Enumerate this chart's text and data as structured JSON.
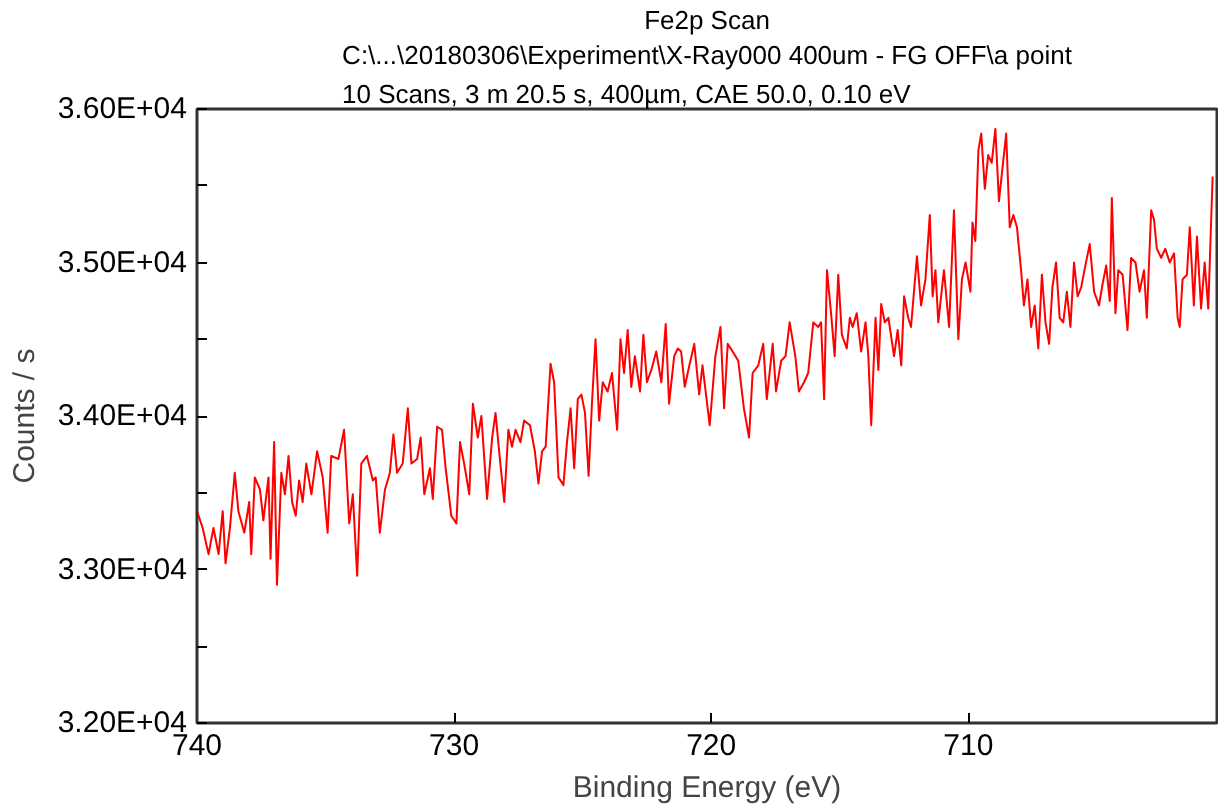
{
  "chart_data": {
    "type": "line",
    "title": "Fe2p Scan",
    "subtitle": "C:\\...\\20180306\\Experiment\\X-Ray000 400um - FG OFF\\a point\n10 Scans,  3 m 20.5 s,  400µm,  CAE 50.0,  0.10 eV",
    "xlabel": "Binding Energy (eV)",
    "ylabel": "Counts / s",
    "xlim": [
      740,
      700.33
    ],
    "xticks": [
      740,
      730,
      720,
      710
    ],
    "ylim": [
      32000,
      36000
    ],
    "yticks": [
      {
        "value": 32000,
        "label": "3.20E+04"
      },
      {
        "value": 32500,
        "label": null
      },
      {
        "value": 33000,
        "label": "3.30E+04"
      },
      {
        "value": 33500,
        "label": null
      },
      {
        "value": 34000,
        "label": "3.40E+04"
      },
      {
        "value": 34500,
        "label": null
      },
      {
        "value": 35000,
        "label": "3.50E+04"
      },
      {
        "value": 35500,
        "label": null
      },
      {
        "value": 36000,
        "label": "3.60E+04"
      }
    ],
    "grid": false,
    "marker": "none",
    "line_style": "solid",
    "series": [
      {
        "color": "#ff0000",
        "x": [
          740.0,
          739.78,
          739.55,
          739.36,
          739.16,
          739.0,
          738.89,
          738.72,
          738.53,
          738.39,
          738.16,
          737.97,
          737.89,
          737.75,
          737.55,
          737.42,
          737.22,
          737.14,
          737.0,
          736.89,
          736.72,
          736.58,
          736.44,
          736.3,
          736.16,
          736.03,
          735.89,
          735.75,
          735.55,
          735.33,
          735.11,
          734.92,
          734.78,
          734.5,
          734.28,
          734.08,
          733.94,
          733.77,
          733.61,
          733.39,
          733.16,
          733.05,
          732.89,
          732.69,
          732.5,
          732.36,
          732.22,
          732.0,
          731.8,
          731.66,
          731.44,
          731.3,
          731.16,
          730.94,
          730.83,
          730.66,
          730.47,
          730.33,
          730.11,
          729.91,
          729.77,
          729.61,
          729.41,
          729.27,
          729.08,
          728.94,
          728.72,
          728.52,
          728.39,
          728.22,
          728.05,
          727.89,
          727.75,
          727.61,
          727.42,
          727.28,
          727.05,
          726.86,
          726.72,
          726.58,
          726.44,
          726.25,
          726.11,
          725.94,
          725.75,
          725.61,
          725.47,
          725.33,
          725.19,
          725.05,
          724.91,
          724.77,
          724.64,
          724.5,
          724.36,
          724.22,
          724.03,
          723.86,
          723.66,
          723.53,
          723.39,
          723.25,
          723.11,
          722.97,
          722.77,
          722.64,
          722.5,
          722.33,
          722.14,
          721.94,
          721.77,
          721.64,
          721.44,
          721.3,
          721.17,
          721.03,
          720.89,
          720.66,
          720.47,
          720.34,
          720.06,
          719.84,
          719.64,
          719.5,
          719.36,
          719.17,
          718.95,
          718.73,
          718.53,
          718.39,
          718.17,
          717.98,
          717.84,
          717.61,
          717.48,
          717.28,
          717.11,
          716.95,
          716.73,
          716.59,
          716.39,
          716.23,
          716.03,
          715.84,
          715.73,
          715.61,
          715.5,
          715.34,
          715.2,
          715.06,
          714.92,
          714.73,
          714.61,
          714.5,
          714.34,
          714.17,
          714.0,
          713.89,
          713.78,
          713.61,
          713.5,
          713.39,
          713.25,
          713.11,
          712.89,
          712.75,
          712.61,
          712.5,
          712.34,
          712.23,
          712.0,
          711.84,
          711.67,
          711.5,
          711.39,
          711.28,
          711.17,
          710.95,
          710.75,
          710.56,
          710.39,
          710.25,
          710.11,
          709.92,
          709.84,
          709.73,
          709.61,
          709.5,
          709.36,
          709.23,
          709.09,
          708.95,
          708.81,
          708.67,
          708.53,
          708.39,
          708.25,
          708.11,
          707.95,
          707.84,
          707.7,
          707.56,
          707.42,
          707.28,
          707.14,
          707.0,
          706.86,
          706.73,
          706.59,
          706.45,
          706.31,
          706.17,
          706.03,
          705.89,
          705.75,
          705.61,
          705.45,
          705.28,
          705.11,
          704.92,
          704.78,
          704.64,
          704.5,
          704.42,
          704.28,
          704.17,
          704.0,
          703.81,
          703.67,
          703.5,
          703.34,
          703.17,
          703.06,
          702.89,
          702.78,
          702.67,
          702.5,
          702.34,
          702.17,
          702.0,
          701.86,
          701.78,
          701.67,
          701.5,
          701.39,
          701.23,
          701.11,
          700.95,
          700.81,
          700.67,
          700.5
        ],
        "values": [
          33380,
          33270,
          33100,
          33270,
          33100,
          33380,
          33040,
          33270,
          33630,
          33380,
          33240,
          33440,
          33100,
          33600,
          33520,
          33320,
          33600,
          33070,
          33830,
          32900,
          33630,
          33490,
          33740,
          33440,
          33350,
          33580,
          33440,
          33690,
          33490,
          33770,
          33600,
          33240,
          33740,
          33720,
          33910,
          33300,
          33490,
          32960,
          33690,
          33740,
          33580,
          33600,
          33240,
          33520,
          33630,
          33880,
          33630,
          33690,
          34050,
          33690,
          33720,
          33860,
          33490,
          33660,
          33460,
          33930,
          33910,
          33660,
          33350,
          33300,
          33830,
          33690,
          33490,
          34080,
          33860,
          34000,
          33460,
          33860,
          34020,
          33720,
          33440,
          33910,
          33800,
          33910,
          33830,
          33970,
          33940,
          33770,
          33560,
          33770,
          33800,
          34340,
          34220,
          33600,
          33550,
          33830,
          34050,
          33660,
          34110,
          34140,
          34020,
          33610,
          34080,
          34500,
          33970,
          34220,
          34160,
          34280,
          33910,
          34500,
          34280,
          34560,
          34190,
          34390,
          34160,
          34530,
          34220,
          34300,
          34420,
          34220,
          34600,
          34080,
          34390,
          34440,
          34420,
          34190,
          34300,
          34470,
          34140,
          34330,
          33940,
          34390,
          34580,
          34050,
          34470,
          34420,
          34360,
          34050,
          33860,
          34280,
          34330,
          34470,
          34110,
          34470,
          34160,
          34360,
          34390,
          34610,
          34390,
          34160,
          34220,
          34280,
          34610,
          34580,
          34610,
          34110,
          34950,
          34670,
          34390,
          34920,
          34530,
          34440,
          34640,
          34580,
          34670,
          34420,
          34610,
          34390,
          33940,
          34640,
          34300,
          34730,
          34610,
          34640,
          34390,
          34560,
          34330,
          34780,
          34640,
          34580,
          35040,
          34720,
          34890,
          35310,
          34780,
          34950,
          34610,
          34950,
          34580,
          35340,
          34500,
          34890,
          35000,
          34810,
          35260,
          35140,
          35730,
          35840,
          35480,
          35700,
          35650,
          35870,
          35400,
          35620,
          35840,
          35230,
          35310,
          35230,
          34950,
          34720,
          34890,
          34580,
          34720,
          34440,
          34920,
          34610,
          34470,
          34840,
          35000,
          34640,
          34610,
          34810,
          34580,
          35000,
          34780,
          34840,
          34980,
          35120,
          34810,
          34720,
          34860,
          34980,
          34750,
          35420,
          34670,
          34950,
          34920,
          34560,
          35030,
          35000,
          34810,
          34950,
          34640,
          35340,
          35280,
          35090,
          35030,
          35090,
          35000,
          35060,
          34640,
          34580,
          34890,
          34920,
          35230,
          34720,
          35170,
          34700,
          35000,
          34700,
          35560
        ]
      }
    ]
  }
}
